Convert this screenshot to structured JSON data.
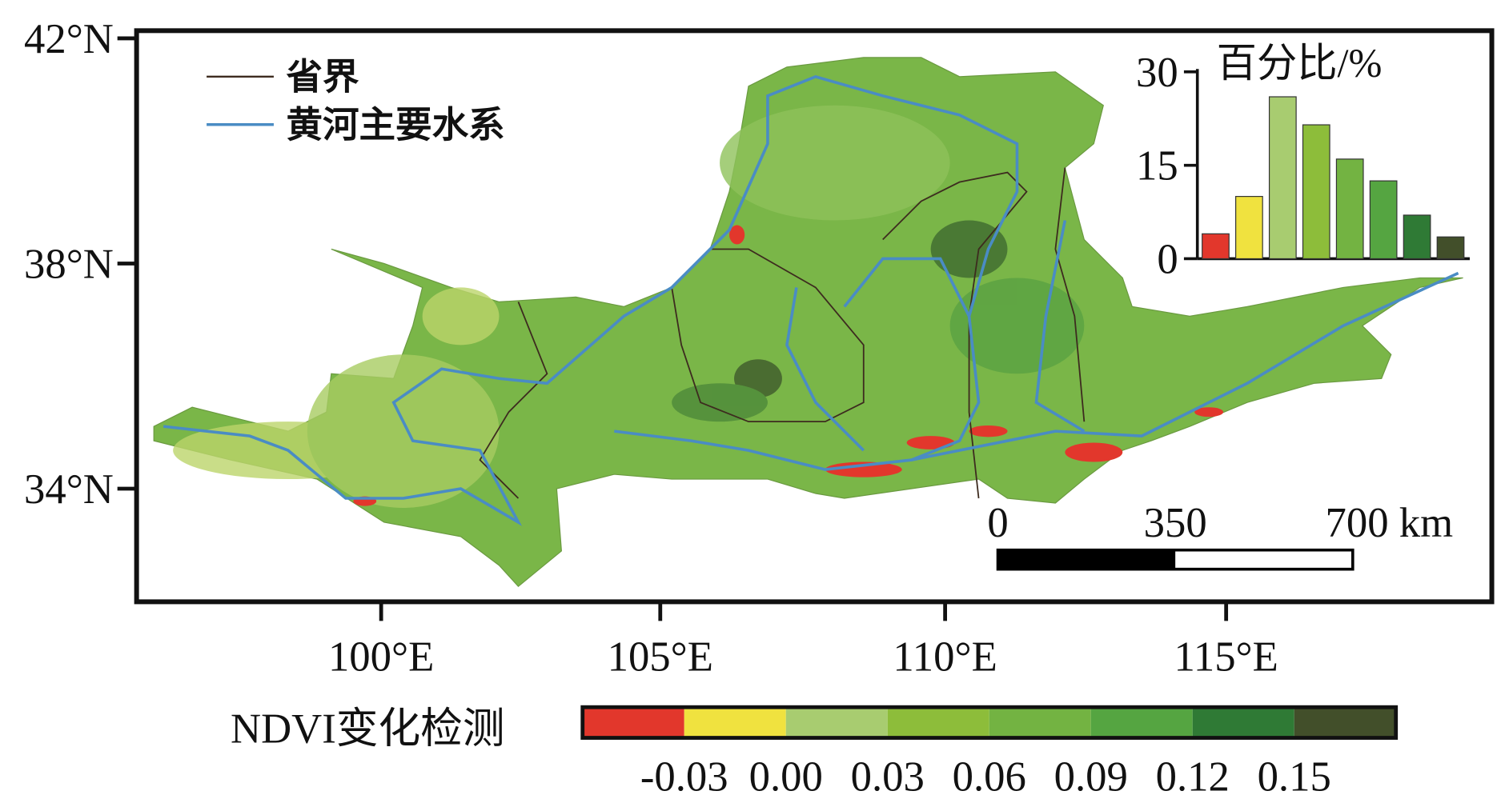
{
  "map": {
    "lat_labels": [
      "42°N",
      "38°N",
      "34°N"
    ],
    "lon_labels": [
      "100°E",
      "105°E",
      "110°E",
      "115°E"
    ],
    "legend": [
      "省界",
      "黄河主要水系"
    ],
    "scale_bar": [
      "0",
      "350",
      "700 km"
    ]
  },
  "colorbar": {
    "title": "NDVI变化检测",
    "colors": [
      "#e2372c",
      "#f0e23f",
      "#a8cc70",
      "#8dbd3a",
      "#73b342",
      "#55a541",
      "#2f7a35",
      "#424f2a"
    ],
    "tick_labels": [
      "-0.03",
      "0.00",
      "0.03",
      "0.06",
      "0.09",
      "0.12",
      "0.15"
    ]
  },
  "chart_data": {
    "type": "bar",
    "title": "百分比/%",
    "values": [
      4,
      10,
      26,
      21.5,
      16,
      12.5,
      7,
      3.5
    ],
    "colors": [
      "#e2372c",
      "#f0e23f",
      "#a8cc70",
      "#8dbd3a",
      "#73b342",
      "#55a541",
      "#2f7a35",
      "#424f2a"
    ],
    "ylim": [
      0,
      30
    ],
    "yticks": [
      0,
      15,
      30
    ]
  }
}
